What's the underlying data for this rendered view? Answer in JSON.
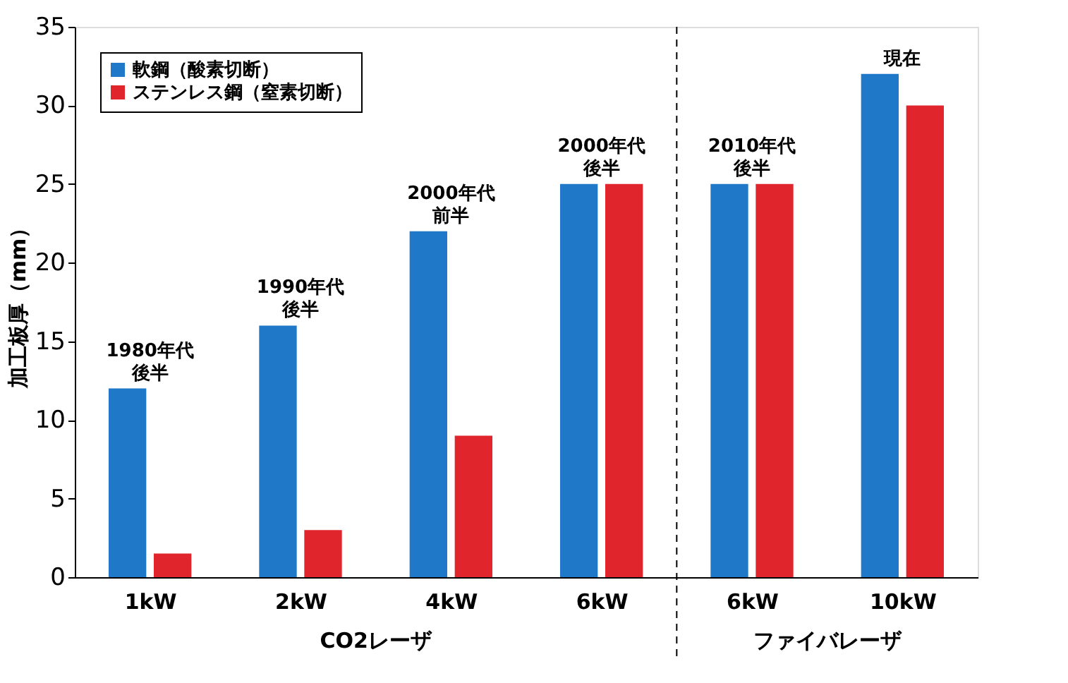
{
  "chart_data": {
    "type": "bar",
    "ylabel": "加工板厚（mm）",
    "categories": [
      "1kW",
      "2kW",
      "4kW",
      "6kW",
      "6kW",
      "10kW"
    ],
    "series": [
      {
        "name": "軟鋼（酸素切断）",
        "color": "#1f78c8",
        "values": [
          12,
          16,
          22,
          25,
          25,
          32
        ]
      },
      {
        "name": "ステンレス鋼（窒素切断）",
        "color": "#e0262c",
        "values": [
          1.5,
          3,
          9,
          25,
          25,
          30
        ]
      }
    ],
    "ylim": [
      0,
      35
    ],
    "yticks": [
      0,
      5,
      10,
      15,
      20,
      25,
      30,
      35
    ],
    "grid": false,
    "legend": "top left",
    "annotations": [
      "1980年代後半",
      "1990年代後半",
      "2000年代前半",
      "2000年代後半",
      "2010年代後半",
      "現在",
      "CO2レーザ",
      "ファイバレーザ"
    ]
  }
}
